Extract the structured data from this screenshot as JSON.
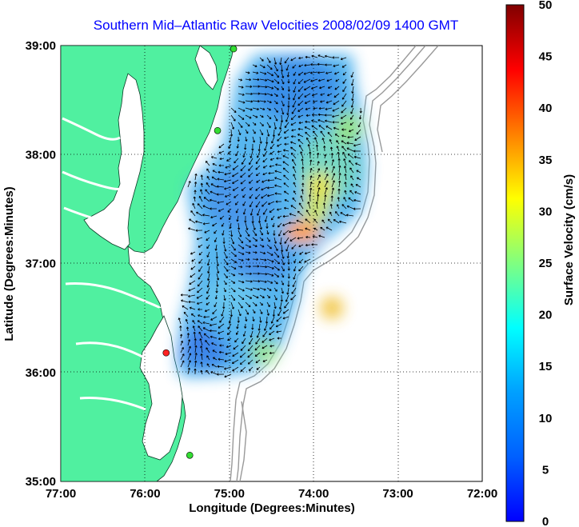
{
  "title": "Southern Mid–Atlantic Raw Velocities 2008/02/09 1400 GMT",
  "x_axis": {
    "label": "Longitude (Degrees:Minutes)",
    "ticks": [
      "77:00",
      "76:00",
      "75:00",
      "74:00",
      "73:00",
      "72:00"
    ]
  },
  "y_axis": {
    "label": "Latitude (Degrees:Minutes)",
    "ticks": [
      "39:00",
      "38:00",
      "37:00",
      "36:00",
      "35:00"
    ]
  },
  "colorbar": {
    "label": "Surface Velocity (cm/s)",
    "ticks": [
      "50",
      "45",
      "40",
      "35",
      "30",
      "25",
      "20",
      "15",
      "10",
      "5",
      "0"
    ],
    "range": [
      0,
      50
    ],
    "colormap": "jet"
  },
  "colors": {
    "land": "#50f0a0",
    "water": "#ffffff",
    "bathymetry": "#999999",
    "grid": "#000000",
    "title": "#0000ff",
    "station_active": "#33dd33",
    "station_offline": "#ff2222"
  },
  "lon_range": [
    -77,
    -72
  ],
  "lat_range": [
    35,
    39
  ],
  "stations": [
    {
      "lon": -74.95,
      "lat": 38.97,
      "status": "active"
    },
    {
      "lon": -75.14,
      "lat": 38.22,
      "status": "active"
    },
    {
      "lon": -75.75,
      "lat": 36.18,
      "status": "offline"
    },
    {
      "lon": -75.47,
      "lat": 35.24,
      "status": "active"
    }
  ]
}
